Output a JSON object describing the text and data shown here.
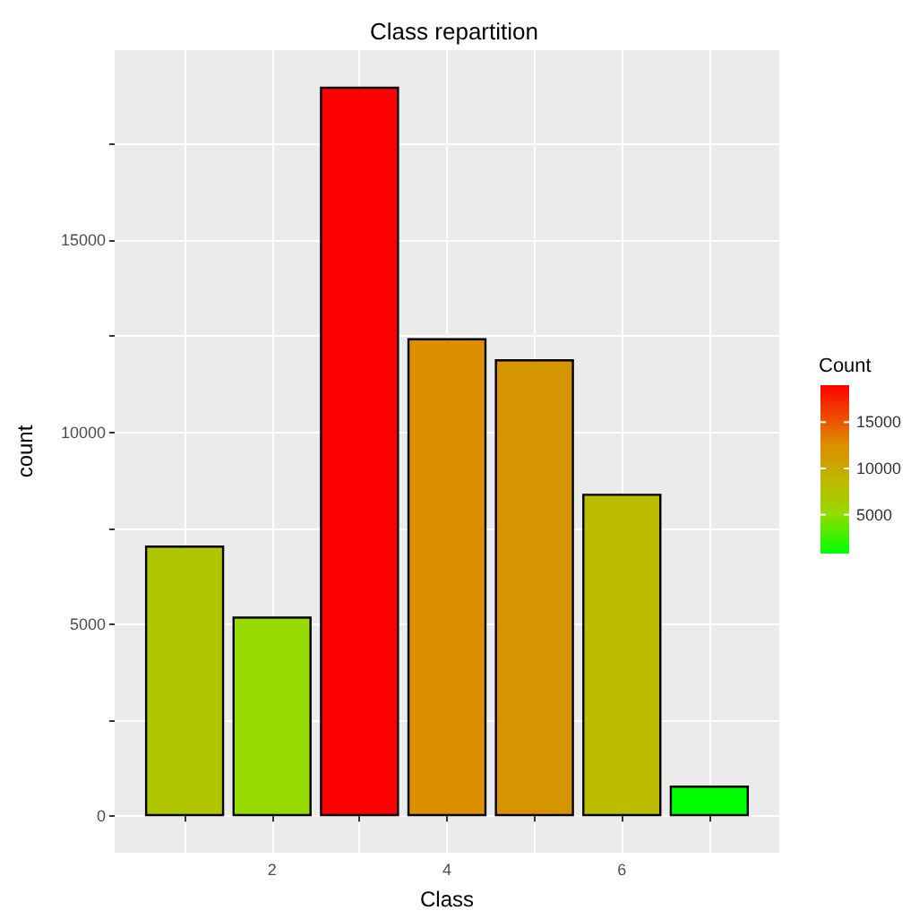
{
  "chart_data": {
    "type": "bar",
    "title": "Class repartition",
    "xlabel": "Class",
    "ylabel": "count",
    "clabel": "Count",
    "x": [
      1,
      2,
      3,
      4,
      5,
      6,
      7
    ],
    "values": [
      7050,
      5200,
      19000,
      12450,
      11900,
      8400,
      800
    ],
    "colors": [
      "#afc600",
      "#97da00",
      "#ff0000",
      "#db9000",
      "#d69400",
      "#bcbc00",
      "#00ff00"
    ],
    "xlim": [
      0.2,
      7.8
    ],
    "xticks": [
      {
        "value": 1,
        "label": null
      },
      2,
      {
        "value": 3,
        "label": null
      },
      4,
      {
        "value": 5,
        "label": null
      },
      6,
      {
        "value": 7,
        "label": null
      }
    ],
    "ylim": [
      -950,
      19950
    ],
    "yticks": [
      0,
      {
        "value": 2500,
        "label": null
      },
      5000,
      {
        "value": 7500,
        "label": null
      },
      10000,
      {
        "value": 12500,
        "label": null
      },
      15000,
      {
        "value": 17500,
        "label": null
      }
    ],
    "clim": [
      800,
      19000
    ],
    "cticks": [
      5000,
      10000,
      15000
    ],
    "grid": true
  }
}
